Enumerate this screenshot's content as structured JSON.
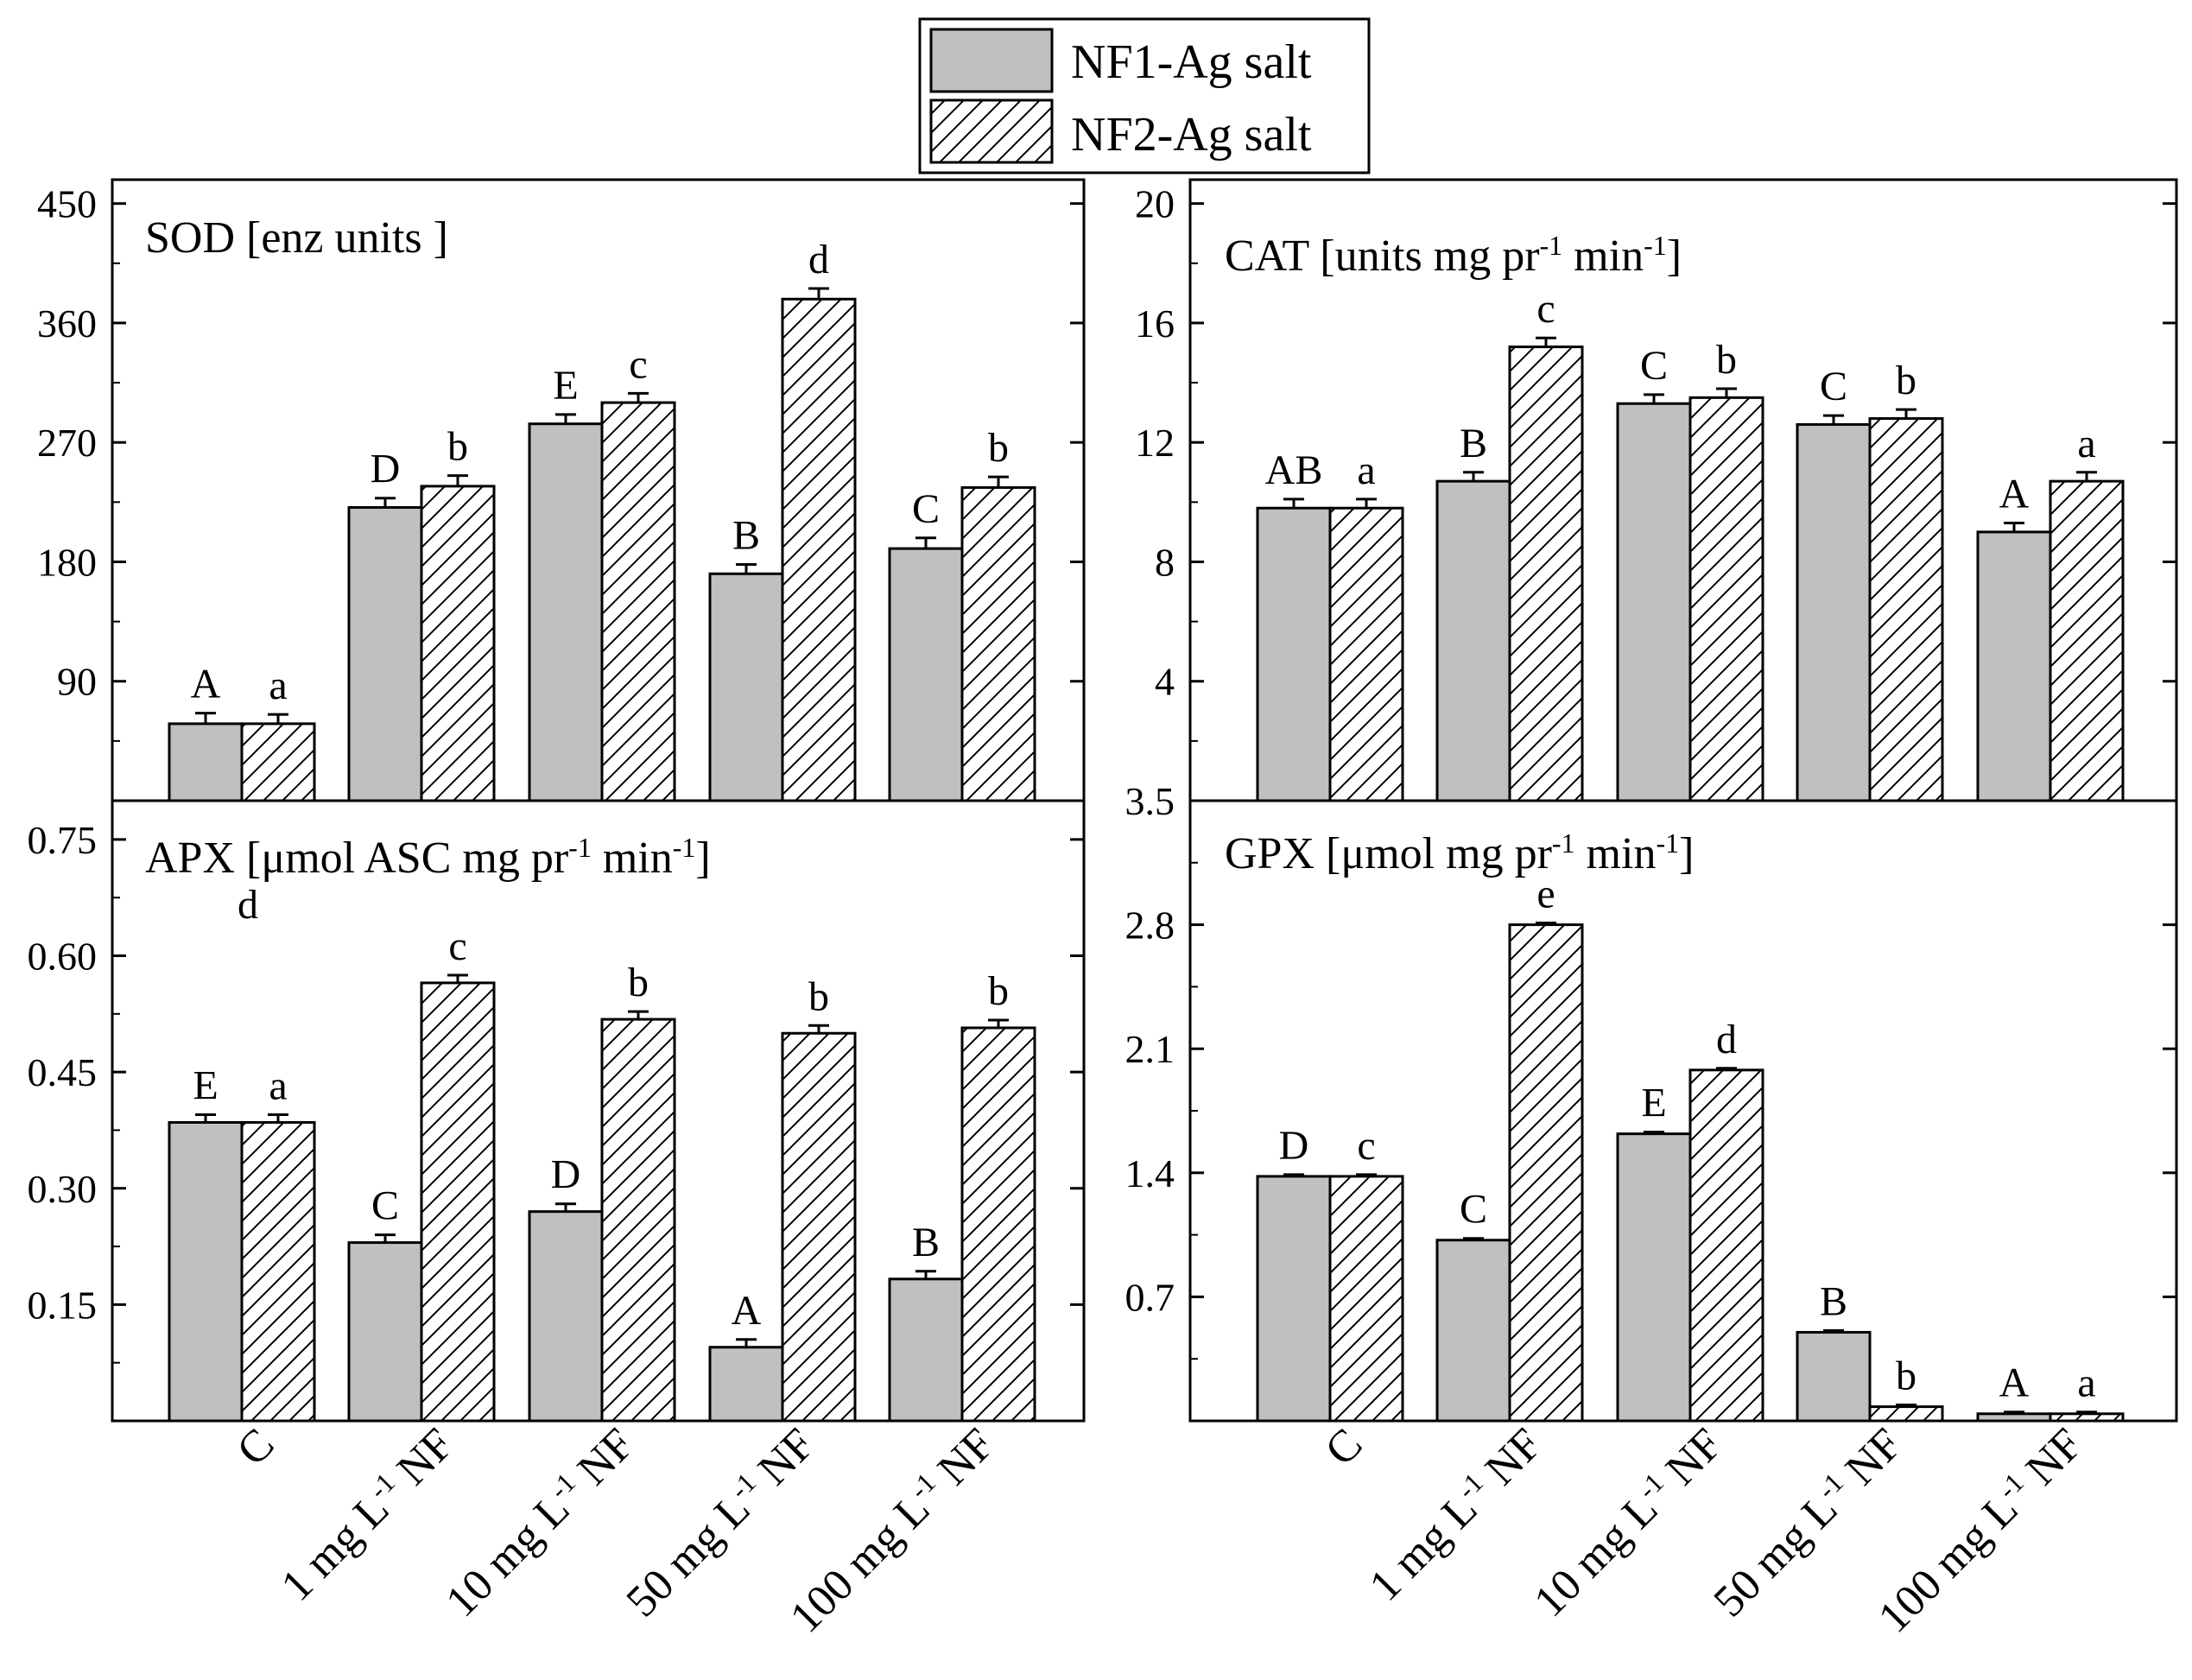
{
  "legend": {
    "items": [
      {
        "label": "NF1-Ag salt",
        "style": "solid"
      },
      {
        "label": "NF2-Ag salt",
        "style": "hatched"
      }
    ]
  },
  "colors": {
    "nf1_fill": "#c0c0c0",
    "nf2_fill": "#ffffff",
    "stroke": "#000000"
  },
  "chart_data": [
    {
      "id": "sod",
      "type": "bar",
      "title": "SOD [enz units ]",
      "categories": [
        "C",
        "1 mg L-1 NF",
        "10 mg L-1 NF",
        "50 mg L-1 NF",
        "100 mg L-1 NF"
      ],
      "ylim": [
        0,
        468
      ],
      "yticks": [
        90,
        180,
        270,
        360,
        450
      ],
      "ytick_labels": [
        "90",
        "180",
        "270",
        "360",
        "450"
      ],
      "series": [
        {
          "name": "NF1-Ag salt",
          "values": [
            58,
            221,
            284,
            171,
            190
          ],
          "errors": [
            8,
            7,
            7,
            7,
            8
          ],
          "letters": [
            "A",
            "D",
            "E",
            "B",
            "C"
          ]
        },
        {
          "name": "NF2-Ag salt",
          "values": [
            58,
            237,
            300,
            378,
            236
          ],
          "errors": [
            7,
            8,
            7,
            8,
            8
          ],
          "letters": [
            "a",
            "b",
            "c",
            "d",
            "b"
          ]
        }
      ]
    },
    {
      "id": "cat",
      "type": "bar",
      "title": "CAT [units mg pr-1 min-1]",
      "categories": [
        "C",
        "1 mg L-1 NF",
        "10 mg L-1 NF",
        "50 mg L-1 NF",
        "100 mg L-1 NF"
      ],
      "ylim": [
        0,
        20.8
      ],
      "yticks": [
        4,
        8,
        12,
        16,
        20
      ],
      "ytick_labels": [
        "4",
        "8",
        "12",
        "16",
        "20"
      ],
      "series": [
        {
          "name": "NF1-Ag salt",
          "values": [
            9.8,
            10.7,
            13.3,
            12.6,
            9.0
          ],
          "errors": [
            0.3,
            0.3,
            0.3,
            0.3,
            0.3
          ],
          "letters": [
            "AB",
            "B",
            "C",
            "C",
            "A"
          ]
        },
        {
          "name": "NF2-Ag salt",
          "values": [
            9.8,
            15.2,
            13.5,
            12.8,
            10.7
          ],
          "errors": [
            0.3,
            0.3,
            0.3,
            0.3,
            0.3
          ],
          "letters": [
            "a",
            "c",
            "b",
            "b",
            "a"
          ]
        }
      ]
    },
    {
      "id": "apx",
      "type": "bar",
      "title": "APX [μmol ASC mg pr-1 min-1]",
      "categories": [
        "C",
        "1 mg L-1 NF",
        "10 mg L-1 NF",
        "50 mg L-1 NF",
        "100 mg L-1 NF"
      ],
      "ylim": [
        0,
        0.8
      ],
      "yticks": [
        0.15,
        0.3,
        0.45,
        0.6,
        0.75
      ],
      "ytick_labels": [
        "0.15",
        "0.30",
        "0.45",
        "0.60",
        "0.75"
      ],
      "series": [
        {
          "name": "NF1-Ag salt",
          "values": [
            0.385,
            0.23,
            0.27,
            0.095,
            0.183
          ],
          "errors": [
            0.01,
            0.01,
            0.01,
            0.01,
            0.01
          ],
          "letters": [
            "E",
            "C",
            "D",
            "A",
            "B"
          ]
        },
        {
          "name": "NF2-Ag salt",
          "values": [
            0.385,
            0.565,
            0.518,
            0.5,
            0.507
          ],
          "errors": [
            0.01,
            0.01,
            0.01,
            0.01,
            0.01
          ],
          "letters": [
            "a",
            "c",
            "b",
            "b",
            "b"
          ]
        }
      ],
      "extra_annotation": "d"
    },
    {
      "id": "gpx",
      "type": "bar",
      "title": "GPX [μmol mg pr-1 min-1]",
      "categories": [
        "C",
        "1 mg L-1 NF",
        "10 mg L-1 NF",
        "50 mg L-1 NF",
        "100 mg L-1 NF"
      ],
      "ylim": [
        0,
        3.5
      ],
      "yticks": [
        0.7,
        1.4,
        2.1,
        2.8,
        3.5
      ],
      "ytick_labels": [
        "0.7",
        "1.4",
        "2.1",
        "2.8",
        "3.5"
      ],
      "series": [
        {
          "name": "NF1-Ag salt",
          "values": [
            1.38,
            1.02,
            1.62,
            0.5,
            0.04
          ],
          "errors": [
            0.01,
            0.01,
            0.01,
            0.01,
            0.01
          ],
          "letters": [
            "D",
            "C",
            "E",
            "B",
            "A"
          ]
        },
        {
          "name": "NF2-Ag salt",
          "values": [
            1.38,
            2.8,
            1.98,
            0.08,
            0.04
          ],
          "errors": [
            0.01,
            0.01,
            0.01,
            0.01,
            0.01
          ],
          "letters": [
            "c",
            "e",
            "d",
            "b",
            "a"
          ]
        }
      ]
    }
  ],
  "xaxis_labels": {
    "left": [
      "C",
      "1 mg L-1 NF",
      "10 mg L-1 NF",
      "50 mg L-1 NF",
      "100 mg L-1 NF"
    ],
    "right": [
      "C",
      "1 mg L-1 NF",
      "10 mg L-1 NF",
      "50 mg L-1 NF",
      "100 mg L-1 NF"
    ]
  }
}
